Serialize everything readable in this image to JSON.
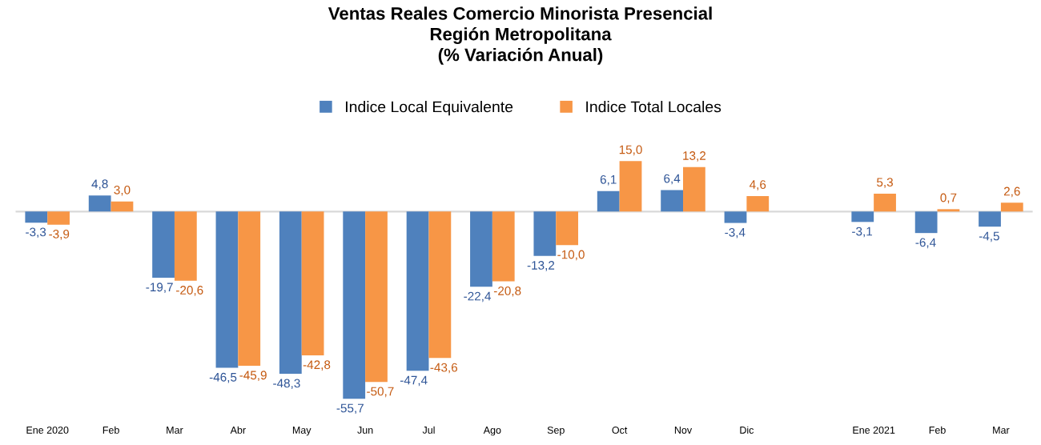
{
  "chart_data": {
    "type": "bar",
    "title": "Ventas Reales Comercio Minorista Presencial\nRegión Metropolitana\n(% Variación Anual)",
    "categories": [
      "Ene 2020",
      "Feb",
      "Mar",
      "Abr",
      "May",
      "Jun",
      "Jul",
      "Ago",
      "Sep",
      "Oct",
      "Nov",
      "Dic",
      null,
      "Ene 2021",
      "Feb",
      "Mar"
    ],
    "series": [
      {
        "name": "Indice Local Equivalente",
        "color": "#4f81bd",
        "values": [
          -3.3,
          4.8,
          -19.7,
          -46.5,
          -48.3,
          -55.7,
          -47.4,
          -22.4,
          -13.2,
          6.1,
          6.4,
          -3.4,
          null,
          -3.1,
          -6.4,
          -4.5
        ],
        "value_labels": [
          "-3,3",
          "4,8",
          "-19,7",
          "-46,5",
          "-48,3",
          "-55,7",
          "-47,4",
          "-22,4",
          "-13,2",
          "6,1",
          "6,4",
          "-3,4",
          null,
          "-3,1",
          "-6,4",
          "-4,5"
        ]
      },
      {
        "name": "Indice Total Locales",
        "color": "#f79646",
        "values": [
          -3.9,
          3.0,
          -20.6,
          -45.9,
          -42.8,
          -50.7,
          -43.6,
          -20.8,
          -10.0,
          15.0,
          13.2,
          4.6,
          null,
          5.3,
          0.7,
          2.6
        ],
        "value_labels": [
          "-3,9",
          "3,0",
          "-20,6",
          "-45,9",
          "-42,8",
          "-50,7",
          "-43,6",
          "-20,8",
          "-10,0",
          "15,0",
          "13,2",
          "4,6",
          null,
          "5,3",
          "0,7",
          "2,6"
        ]
      }
    ],
    "legend": "top"
  }
}
